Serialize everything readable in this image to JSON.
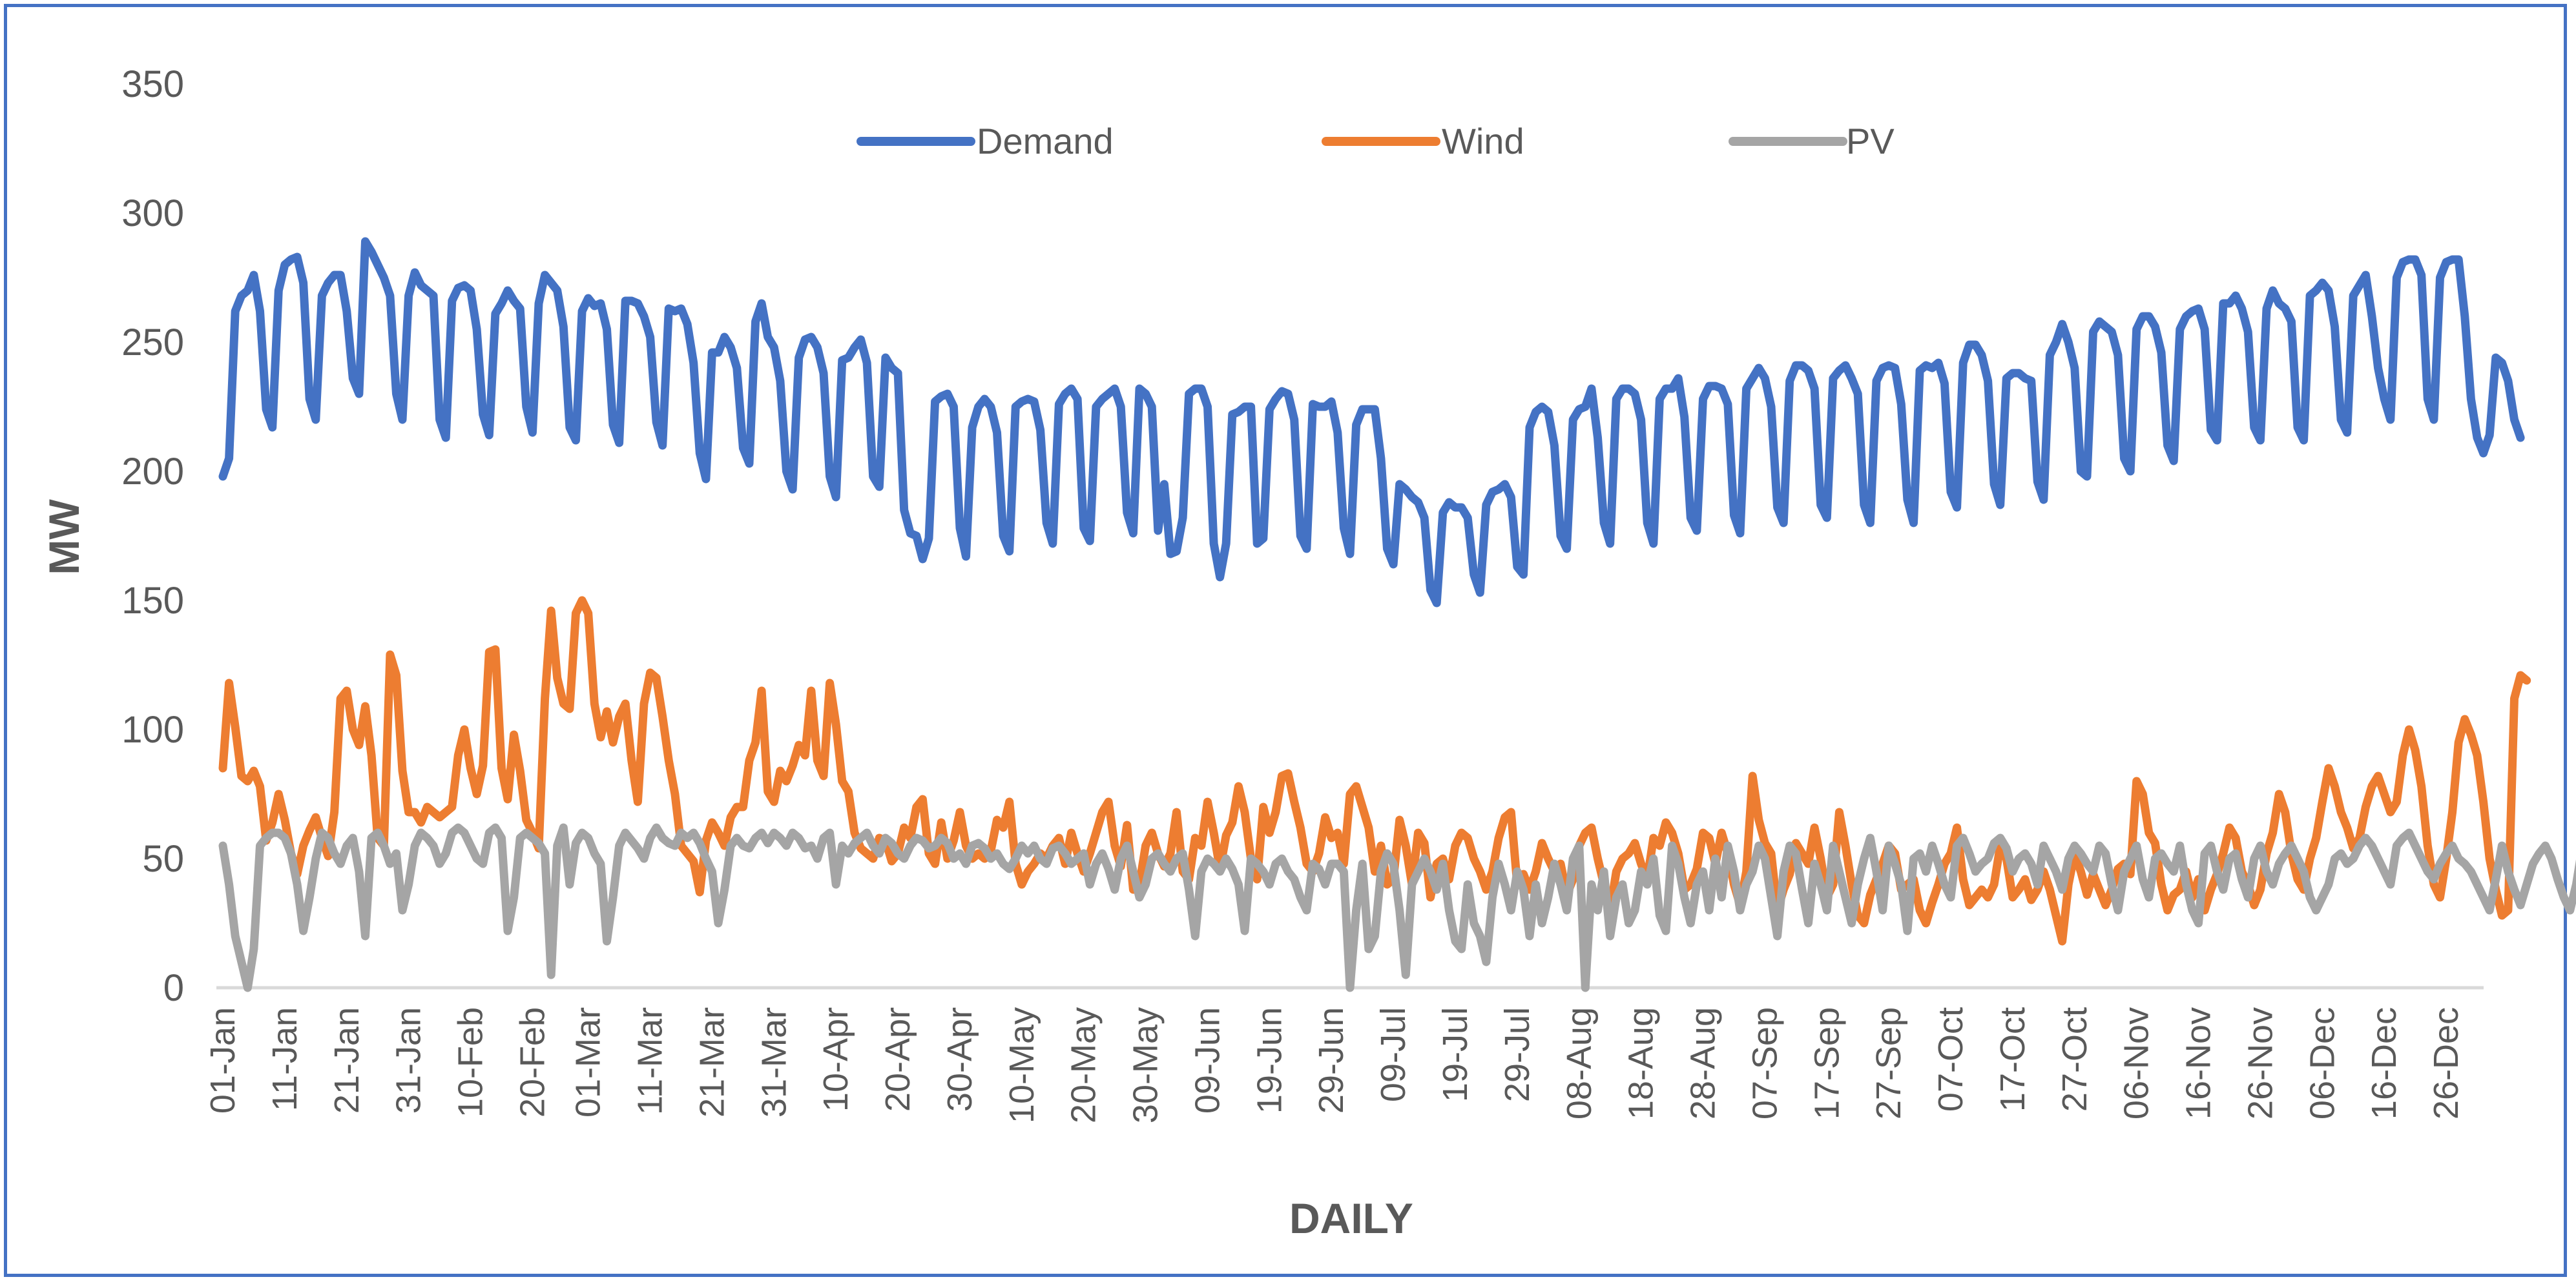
{
  "chart_data": {
    "type": "line",
    "title": "",
    "xlabel": "DAILY",
    "ylabel": "MW",
    "ylim": [
      0,
      350
    ],
    "yticks": [
      0,
      50,
      100,
      150,
      200,
      250,
      300,
      350
    ],
    "grid": false,
    "legend_position": "top-center",
    "x_tick_labels": [
      "01-Jan",
      "11-Jan",
      "21-Jan",
      "31-Jan",
      "10-Feb",
      "20-Feb",
      "01-Mar",
      "11-Mar",
      "21-Mar",
      "31-Mar",
      "10-Apr",
      "20-Apr",
      "30-Apr",
      "10-May",
      "20-May",
      "30-May",
      "09-Jun",
      "19-Jun",
      "29-Jun",
      "09-Jul",
      "19-Jul",
      "29-Jul",
      "08-Aug",
      "18-Aug",
      "28-Aug",
      "07-Sep",
      "17-Sep",
      "27-Sep",
      "07-Oct",
      "17-Oct",
      "27-Oct",
      "06-Nov",
      "16-Nov",
      "26-Nov",
      "06-Dec",
      "16-Dec",
      "26-Dec"
    ],
    "x_tick_days": [
      1,
      11,
      21,
      31,
      41,
      51,
      60,
      70,
      80,
      90,
      100,
      110,
      120,
      130,
      140,
      150,
      160,
      170,
      180,
      190,
      200,
      210,
      220,
      230,
      240,
      250,
      260,
      270,
      280,
      290,
      300,
      310,
      320,
      330,
      340,
      350,
      360
    ],
    "days": 365,
    "series": [
      {
        "name": "Demand",
        "color": "#4472C4",
        "values": [
          198,
          205,
          262,
          268,
          270,
          276,
          262,
          224,
          217,
          270,
          280,
          282,
          283,
          273,
          228,
          220,
          268,
          273,
          276,
          276,
          262,
          236,
          230,
          289,
          285,
          280,
          275,
          268,
          230,
          220,
          268,
          277,
          272,
          270,
          268,
          220,
          213,
          266,
          271,
          272,
          270,
          255,
          222,
          214,
          261,
          265,
          270,
          266,
          263,
          225,
          215,
          265,
          276,
          273,
          270,
          256,
          217,
          212,
          262,
          267,
          264,
          265,
          255,
          218,
          211,
          266,
          266,
          265,
          260,
          252,
          219,
          210,
          263,
          262,
          263,
          257,
          242,
          207,
          197,
          246,
          246,
          252,
          248,
          240,
          209,
          203,
          258,
          265,
          252,
          248,
          235,
          200,
          193,
          244,
          251,
          252,
          248,
          238,
          198,
          190,
          243,
          244,
          248,
          251,
          242,
          198,
          194,
          244,
          240,
          238,
          185,
          176,
          175,
          166,
          174,
          227,
          229,
          230,
          225,
          178,
          167,
          217,
          225,
          228,
          225,
          215,
          175,
          169,
          225,
          227,
          228,
          227,
          216,
          180,
          172,
          226,
          230,
          232,
          228,
          178,
          173,
          225,
          228,
          230,
          232,
          225,
          184,
          176,
          232,
          230,
          225,
          177,
          195,
          168,
          169,
          182,
          230,
          232,
          232,
          225,
          172,
          159,
          172,
          222,
          223,
          225,
          225,
          172,
          174,
          224,
          228,
          231,
          230,
          220,
          175,
          170,
          226,
          225,
          225,
          227,
          215,
          178,
          168,
          218,
          224,
          224,
          224,
          205,
          170,
          164,
          195,
          193,
          190,
          188,
          182,
          154,
          149,
          184,
          188,
          186,
          186,
          182,
          160,
          153,
          187,
          192,
          193,
          195,
          190,
          163,
          160,
          217,
          223,
          225,
          223,
          210,
          175,
          170,
          220,
          224,
          225,
          232,
          213,
          180,
          172,
          228,
          232,
          232,
          230,
          220,
          180,
          172,
          228,
          232,
          232,
          236,
          221,
          182,
          177,
          228,
          233,
          233,
          232,
          226,
          183,
          176,
          232,
          236,
          240,
          236,
          225,
          186,
          180,
          235,
          241,
          241,
          239,
          232,
          187,
          182,
          236,
          239,
          241,
          236,
          230,
          187,
          180,
          235,
          240,
          241,
          240,
          226,
          189,
          180,
          239,
          241,
          240,
          242,
          234,
          192,
          186,
          242,
          249,
          249,
          245,
          235,
          195,
          187,
          236,
          238,
          238,
          236,
          235,
          196,
          189,
          245,
          250,
          257,
          250,
          240,
          200,
          198,
          254,
          258,
          256,
          254,
          245,
          205,
          200,
          255,
          260,
          260,
          256,
          246,
          210,
          204,
          255,
          260,
          262,
          263,
          255,
          216,
          212,
          265,
          265,
          268,
          263,
          254,
          217,
          212,
          263,
          270,
          265,
          263,
          258,
          217,
          212,
          268,
          270,
          273,
          270,
          256,
          220,
          215,
          268,
          272,
          276,
          260,
          240,
          228,
          220,
          275,
          281,
          282,
          282,
          276,
          228,
          220,
          275,
          281,
          282,
          282,
          260,
          228,
          213,
          207,
          214,
          244,
          242,
          235,
          220,
          213
        ]
      },
      {
        "name": "Wind",
        "color": "#ED7D31",
        "values": [
          85,
          118,
          101,
          82,
          80,
          84,
          78,
          57,
          64,
          75,
          65,
          52,
          44,
          55,
          61,
          66,
          58,
          51,
          68,
          112,
          115,
          100,
          94,
          109,
          90,
          58,
          55,
          129,
          121,
          84,
          68,
          68,
          64,
          70,
          68,
          66,
          68,
          70,
          90,
          100,
          85,
          75,
          86,
          130,
          131,
          85,
          73,
          98,
          84,
          65,
          60,
          54,
          112,
          146,
          120,
          110,
          108,
          145,
          150,
          145,
          110,
          97,
          107,
          95,
          105,
          110,
          88,
          72,
          110,
          122,
          120,
          105,
          88,
          75,
          55,
          52,
          49,
          37,
          57,
          64,
          60,
          55,
          66,
          70,
          70,
          88,
          95,
          115,
          76,
          72,
          84,
          80,
          86,
          94,
          90,
          115,
          88,
          82,
          118,
          102,
          80,
          76,
          60,
          54,
          52,
          50,
          58,
          57,
          49,
          52,
          62,
          58,
          70,
          73,
          52,
          48,
          64,
          50,
          57,
          68,
          55,
          50,
          52,
          50,
          53,
          65,
          62,
          72,
          48,
          40,
          45,
          48,
          52,
          50,
          55,
          58,
          48,
          60,
          52,
          45,
          52,
          60,
          68,
          72,
          55,
          47,
          63,
          38,
          40,
          55,
          60,
          52,
          47,
          52,
          68,
          45,
          42,
          58,
          55,
          72,
          60,
          46,
          59,
          64,
          78,
          68,
          50,
          42,
          70,
          60,
          68,
          82,
          83,
          72,
          62,
          48,
          45,
          52,
          66,
          58,
          60,
          48,
          75,
          78,
          70,
          62,
          45,
          55,
          40,
          42,
          65,
          55,
          40,
          60,
          56,
          35,
          48,
          50,
          42,
          55,
          60,
          58,
          50,
          45,
          38,
          45,
          58,
          66,
          68,
          40,
          44,
          38,
          45,
          56,
          50,
          45,
          48,
          36,
          42,
          55,
          60,
          62,
          50,
          40,
          30,
          45,
          50,
          52,
          56,
          48,
          42,
          58,
          55,
          64,
          60,
          52,
          38,
          40,
          46,
          60,
          58,
          48,
          60,
          52,
          40,
          32,
          45,
          82,
          65,
          56,
          52,
          30,
          38,
          44,
          56,
          52,
          48,
          62,
          50,
          35,
          40,
          68,
          55,
          40,
          28,
          25,
          36,
          42,
          48,
          55,
          52,
          38,
          40,
          42,
          30,
          25,
          33,
          40,
          48,
          52,
          62,
          42,
          32,
          35,
          38,
          35,
          40,
          55,
          50,
          35,
          38,
          42,
          34,
          38,
          45,
          38,
          28,
          18,
          40,
          52,
          45,
          36,
          44,
          38,
          32,
          38,
          46,
          48,
          44,
          80,
          75,
          60,
          56,
          40,
          30,
          36,
          38,
          45,
          35,
          42,
          30,
          38,
          44,
          52,
          62,
          58,
          45,
          40,
          32,
          38,
          52,
          60,
          75,
          68,
          52,
          42,
          38,
          50,
          58,
          72,
          85,
          78,
          68,
          62,
          54,
          58,
          70,
          78,
          82,
          75,
          68,
          72,
          90,
          100,
          92,
          78,
          55,
          40,
          35,
          50,
          68,
          95,
          104,
          98,
          90,
          72,
          50,
          38,
          28,
          30,
          112,
          121,
          119
        ]
      },
      {
        "name": "PV",
        "color": "#A5A5A5",
        "values": [
          55,
          40,
          20,
          10,
          0,
          15,
          55,
          58,
          60,
          60,
          58,
          52,
          40,
          22,
          35,
          50,
          60,
          58,
          52,
          48,
          55,
          58,
          45,
          20,
          58,
          60,
          55,
          48,
          52,
          30,
          40,
          55,
          60,
          58,
          55,
          48,
          52,
          60,
          62,
          60,
          55,
          50,
          48,
          60,
          62,
          58,
          22,
          35,
          58,
          60,
          58,
          56,
          52,
          5,
          55,
          62,
          40,
          56,
          60,
          58,
          52,
          48,
          18,
          35,
          55,
          60,
          57,
          54,
          50,
          58,
          62,
          58,
          56,
          55,
          60,
          58,
          60,
          56,
          50,
          45,
          25,
          38,
          55,
          58,
          55,
          54,
          58,
          60,
          56,
          60,
          58,
          55,
          60,
          58,
          54,
          55,
          50,
          58,
          60,
          40,
          55,
          52,
          56,
          58,
          60,
          55,
          52,
          58,
          56,
          52,
          50,
          55,
          58,
          57,
          54,
          55,
          58,
          56,
          50,
          52,
          48,
          55,
          56,
          54,
          50,
          52,
          48,
          46,
          50,
          55,
          52,
          55,
          50,
          48,
          54,
          55,
          52,
          48,
          50,
          52,
          40,
          48,
          52,
          46,
          38,
          50,
          55,
          45,
          35,
          40,
          50,
          52,
          48,
          45,
          50,
          52,
          38,
          20,
          45,
          50,
          48,
          45,
          50,
          46,
          40,
          22,
          50,
          48,
          45,
          40,
          48,
          50,
          45,
          42,
          35,
          30,
          48,
          46,
          40,
          48,
          48,
          45,
          0,
          30,
          48,
          15,
          20,
          45,
          52,
          48,
          30,
          5,
          40,
          45,
          50,
          45,
          38,
          48,
          30,
          18,
          15,
          40,
          25,
          20,
          10,
          35,
          48,
          40,
          30,
          45,
          38,
          20,
          40,
          25,
          35,
          48,
          40,
          30,
          50,
          55,
          0,
          40,
          30,
          45,
          20,
          35,
          40,
          25,
          30,
          45,
          40,
          50,
          28,
          22,
          55,
          48,
          35,
          25,
          40,
          45,
          30,
          50,
          35,
          55,
          45,
          30,
          40,
          45,
          55,
          50,
          35,
          20,
          45,
          55,
          52,
          38,
          25,
          48,
          40,
          30,
          55,
          45,
          35,
          25,
          40,
          50,
          58,
          45,
          30,
          55,
          48,
          40,
          22,
          50,
          52,
          45,
          55,
          48,
          40,
          35,
          55,
          58,
          52,
          45,
          48,
          50,
          56,
          58,
          54,
          45,
          50,
          52,
          48,
          40,
          55,
          50,
          45,
          38,
          50,
          55,
          52,
          48,
          45,
          55,
          52,
          40,
          30,
          45,
          50,
          55,
          42,
          35,
          50,
          52,
          48,
          45,
          55,
          40,
          30,
          25,
          52,
          55,
          45,
          38,
          50,
          52,
          42,
          35,
          50,
          55,
          45,
          40,
          48,
          52,
          55,
          50,
          45,
          35,
          30,
          35,
          40,
          50,
          52,
          48,
          50,
          55,
          58,
          55,
          50,
          45,
          40,
          55,
          58,
          60,
          55,
          50,
          45,
          42,
          48,
          52,
          55,
          50,
          48,
          45,
          40,
          35,
          30,
          42,
          55,
          45,
          38,
          32,
          40,
          48,
          52,
          55,
          50,
          42,
          35,
          30,
          40,
          55,
          52,
          50,
          55,
          57
        ]
      }
    ]
  }
}
